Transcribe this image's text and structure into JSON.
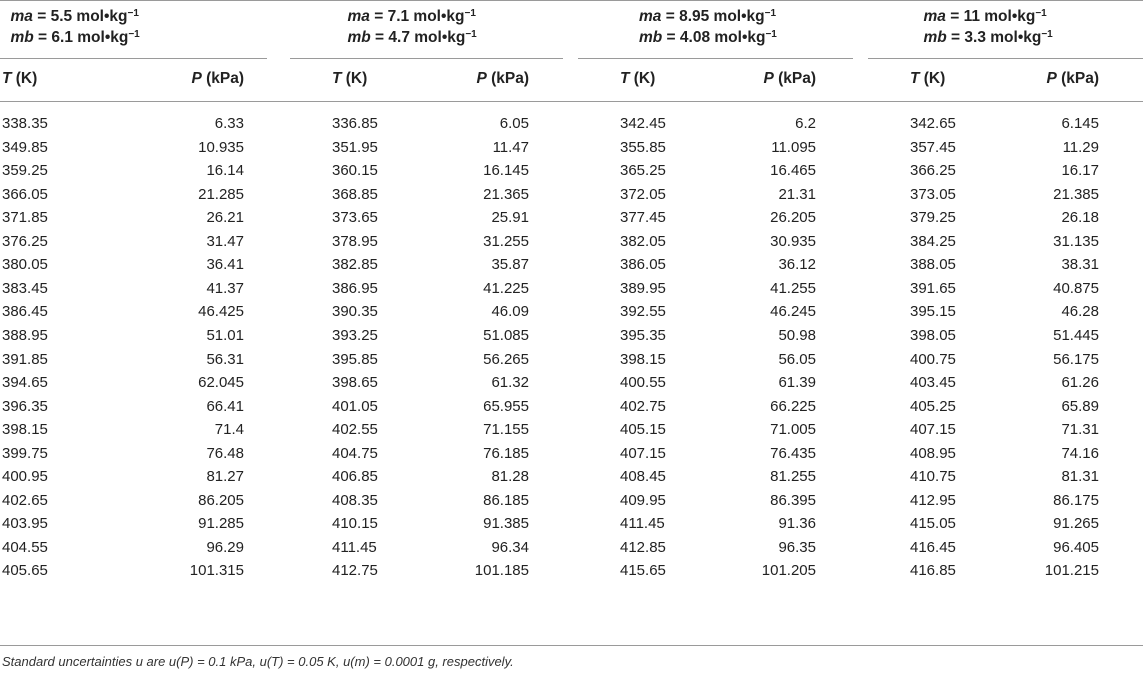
{
  "groups": [
    {
      "ma_label": "ma",
      "ma_value": " = 5.5 mol•kg",
      "mb_label": "mb",
      "mb_value": " = 6.1 mol•kg",
      "unit_exp": "−1"
    },
    {
      "ma_label": "ma",
      "ma_value": " = 7.1 mol•kg",
      "mb_label": "mb",
      "mb_value": " = 4.7 mol•kg",
      "unit_exp": "−1"
    },
    {
      "ma_label": "ma",
      "ma_value": " = 8.95 mol•kg",
      "mb_label": "mb",
      "mb_value": " = 4.08 mol•kg",
      "unit_exp": "−1"
    },
    {
      "ma_label": "ma",
      "ma_value": " = 11 mol•kg",
      "mb_label": "mb",
      "mb_value": " = 3.3 mol•kg",
      "unit_exp": "−1"
    }
  ],
  "column_headers": {
    "t_symbol": "T",
    "t_unit": " (K)",
    "p_symbol": "P",
    "p_unit": " (kPa)"
  },
  "rows": [
    [
      "338.35",
      "6.33",
      "336.85",
      "6.05",
      "342.45",
      "6.2",
      "342.65",
      "6.145"
    ],
    [
      "349.85",
      "10.935",
      "351.95",
      "11.47",
      "355.85",
      "11.095",
      "357.45",
      "11.29"
    ],
    [
      "359.25",
      "16.14",
      "360.15",
      "16.145",
      "365.25",
      "16.465",
      "366.25",
      "16.17"
    ],
    [
      "366.05",
      "21.285",
      "368.85",
      "21.365",
      "372.05",
      "21.31",
      "373.05",
      "21.385"
    ],
    [
      "371.85",
      "26.21",
      "373.65",
      "25.91",
      "377.45",
      "26.205",
      "379.25",
      "26.18"
    ],
    [
      "376.25",
      "31.47",
      "378.95",
      "31.255",
      "382.05",
      "30.935",
      "384.25",
      "31.135"
    ],
    [
      "380.05",
      "36.41",
      "382.85",
      "35.87",
      "386.05",
      "36.12",
      "388.05",
      "38.31"
    ],
    [
      "383.45",
      "41.37",
      "386.95",
      "41.225",
      "389.95",
      "41.255",
      "391.65",
      "40.875"
    ],
    [
      "386.45",
      "46.425",
      "390.35",
      "46.09",
      "392.55",
      "46.245",
      "395.15",
      "46.28"
    ],
    [
      "388.95",
      "51.01",
      "393.25",
      "51.085",
      "395.35",
      "50.98",
      "398.05",
      "51.445"
    ],
    [
      "391.85",
      "56.31",
      "395.85",
      "56.265",
      "398.15",
      "56.05",
      "400.75",
      "56.175"
    ],
    [
      "394.65",
      "62.045",
      "398.65",
      "61.32",
      "400.55",
      "61.39",
      "403.45",
      "61.26"
    ],
    [
      "396.35",
      "66.41",
      "401.05",
      "65.955",
      "402.75",
      "66.225",
      "405.25",
      "65.89"
    ],
    [
      "398.15",
      "71.4",
      "402.55",
      "71.155",
      "405.15",
      "71.005",
      "407.15",
      "71.31"
    ],
    [
      "399.75",
      "76.48",
      "404.75",
      "76.185",
      "407.15",
      "76.435",
      "408.95",
      "74.16"
    ],
    [
      "400.95",
      "81.27",
      "406.85",
      "81.28",
      "408.45",
      "81.255",
      "410.75",
      "81.31"
    ],
    [
      "402.65",
      "86.205",
      "408.35",
      "86.185",
      "409.95",
      "86.395",
      "412.95",
      "86.175"
    ],
    [
      "403.95",
      "91.285",
      "410.15",
      "91.385",
      "411.45",
      "91.36",
      "415.05",
      "91.265"
    ],
    [
      "404.55",
      "96.29",
      "411.45",
      "96.34",
      "412.85",
      "96.35",
      "416.45",
      "96.405"
    ],
    [
      "405.65",
      "101.315",
      "412.75",
      "101.185",
      "415.65",
      "101.205",
      "416.85",
      "101.215"
    ]
  ],
  "footnote": "Standard uncertainties u are u(P) = 0.1 kPa, u(T) = 0.05 K, u(m) = 0.0001 g, respectively."
}
